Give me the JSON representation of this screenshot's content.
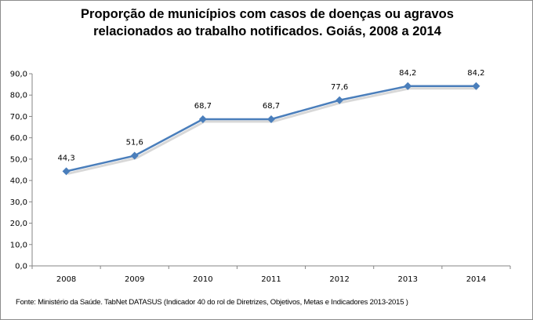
{
  "chart_data": {
    "type": "line",
    "title": "Proporção de municípios com casos de doenças ou agravos relacionados ao trabalho notificados. Goiás, 2008 a 2014",
    "categories": [
      "2008",
      "2009",
      "2010",
      "2011",
      "2012",
      "2013",
      "2014"
    ],
    "series": [
      {
        "name": "Proporção",
        "values": [
          44.3,
          51.6,
          68.7,
          68.7,
          77.6,
          84.2,
          84.2
        ],
        "labels": [
          "44,3",
          "51,6",
          "68,7",
          "68,7",
          "77,6",
          "84,2",
          "84,2"
        ],
        "color": "#4a7ebb"
      }
    ],
    "yticks": [
      "0,0",
      "10,0",
      "20,0",
      "30,0",
      "40,0",
      "50,0",
      "60,0",
      "70,0",
      "80,0",
      "90,0"
    ],
    "ylim": [
      0,
      90
    ],
    "xlabel": "",
    "ylabel": "",
    "grid": false,
    "legend": "none"
  },
  "source": "Fonte: Ministério da Saúde. TabNet DATASUS (Indicador 40 do rol de Diretrizes, Objetivos, Metas e Indicadores 2013-2015 )"
}
